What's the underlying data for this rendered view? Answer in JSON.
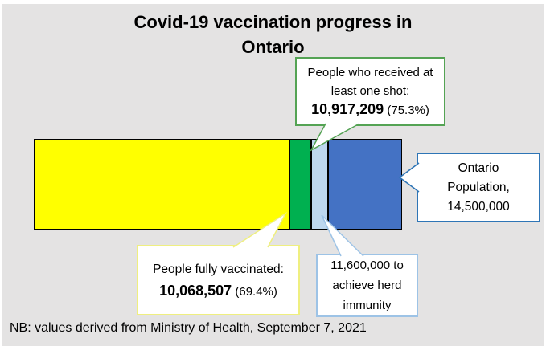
{
  "page": {
    "title_line1": "Covid-19 vaccination progress in",
    "title_line2": "Ontario",
    "note": "NB: values derived from Ministry of Health, September 7, 2021",
    "background_color": "#e4e3e3"
  },
  "callouts": {
    "one_shot": {
      "line1": "People who received at",
      "line2": "least one shot:",
      "value": "10,917,209",
      "percent": " (75.3%)",
      "border_color": "#54a354"
    },
    "population": {
      "line1": "Ontario",
      "line2": "Population,",
      "line3": "14,500,000",
      "border_color": "#2e75b6"
    },
    "fully_vaccinated": {
      "line1": "People fully vaccinated:",
      "value": "10,068,507",
      "percent": " (69.4%)",
      "border_color": "#efef80"
    },
    "herd_immunity": {
      "line1": "11,600,000 to",
      "line2": "achieve herd",
      "line3": "immunity",
      "border_color": "#9dc3e6"
    }
  },
  "chart_data": {
    "type": "bar",
    "orientation": "horizontal_stacked",
    "title": "Covid-19 vaccination progress in Ontario",
    "unit": "people",
    "total": 14500000,
    "segments": [
      {
        "name": "People fully vaccinated",
        "from": 0,
        "to": 10068507,
        "percent_of_total": "69.4%",
        "color": "#ffff00"
      },
      {
        "name": "People who received at least one shot (cumulative 10,917,209)",
        "from": 10068507,
        "to": 10917209,
        "percent_of_total_cumulative": "75.3%",
        "color": "#00b050"
      },
      {
        "name": "11,600,000 to achieve herd immunity",
        "from": 10917209,
        "to": 11600000,
        "color": "#bdd7ee"
      },
      {
        "name": "Ontario Population, 14,500,000",
        "from": 11600000,
        "to": 14500000,
        "color": "#4472c4"
      }
    ],
    "bar_border_color": "#000000",
    "legend": "none",
    "grid": false,
    "source_note": "NB: values derived from Ministry of Health, September 7, 2021"
  }
}
